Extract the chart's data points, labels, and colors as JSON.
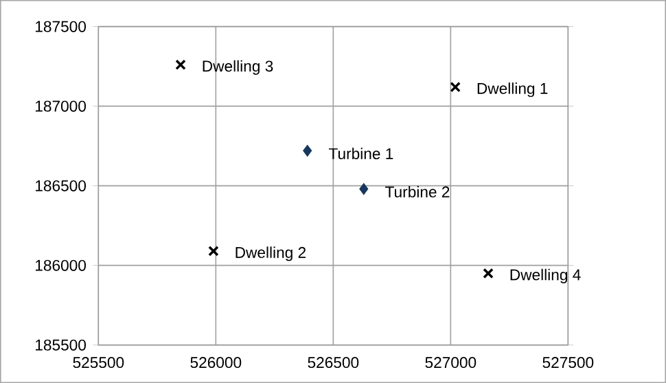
{
  "chart_data": {
    "type": "scatter",
    "series": [
      {
        "color": "#000000",
        "marker": "cross",
        "x": [
          527020,
          525990,
          525850,
          527160
        ],
        "values": [
          187120,
          186090,
          187260,
          185950
        ]
      },
      {
        "color": "#17375e",
        "marker": "diamond",
        "x": [
          526390,
          526630
        ],
        "values": [
          186720,
          186480
        ]
      }
    ],
    "xlim": [
      525500,
      527500
    ],
    "xticks": [
      525500,
      526000,
      526500,
      527000,
      527500
    ],
    "ylim": [
      185500,
      187500
    ],
    "yticks": [
      185500,
      186000,
      186500,
      187000,
      187500
    ],
    "grid": true,
    "annotations": [
      {
        "text": "Dwelling 1",
        "x": 527020,
        "y": 187120
      },
      {
        "text": "Dwelling 2",
        "x": 525990,
        "y": 186090
      },
      {
        "text": "Dwelling 3",
        "x": 525850,
        "y": 187260
      },
      {
        "text": "Dwelling 4",
        "x": 527160,
        "y": 185950
      },
      {
        "text": "Turbine 1",
        "x": 526390,
        "y": 186720
      },
      {
        "text": "Turbine 2",
        "x": 526630,
        "y": 186480
      }
    ]
  }
}
